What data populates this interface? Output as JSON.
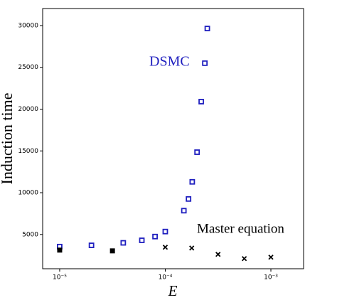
{
  "chart_data": {
    "type": "scatter",
    "x_label": "E",
    "y_label": "Induction time",
    "xscale": "log",
    "xlim": [
      6.9e-06,
      0.00204
    ],
    "ylim": [
      900,
      32040
    ],
    "xticks": [
      {
        "value": 1e-05,
        "label": "10⁻⁵"
      },
      {
        "value": 0.0001,
        "label": "10⁻⁴"
      },
      {
        "value": 0.001,
        "label": "10⁻³"
      }
    ],
    "yticks": [
      5000,
      10000,
      15000,
      20000,
      25000,
      30000
    ],
    "series": [
      {
        "name": "DSMC",
        "color": "#1f1fbf",
        "marker": "square-open",
        "x": [
          1e-05,
          2e-05,
          4e-05,
          6e-05,
          8e-05,
          0.0001,
          0.00015,
          0.000166,
          0.00018,
          0.0002,
          0.000219,
          0.000237,
          0.00025
        ],
        "values": [
          3550,
          3700,
          4000,
          4300,
          4750,
          5350,
          7850,
          9250,
          11300,
          14850,
          20900,
          25500,
          29650
        ]
      },
      {
        "name": "Master equation",
        "color": "#000000",
        "markers": [
          "square",
          "square",
          "x",
          "x",
          "x",
          "x",
          "x"
        ],
        "x": [
          1e-05,
          3.16e-05,
          0.0001,
          0.000178,
          0.000316,
          0.00056,
          0.001
        ],
        "values": [
          3130,
          3040,
          3470,
          3380,
          2620,
          2110,
          2280
        ]
      }
    ]
  }
}
